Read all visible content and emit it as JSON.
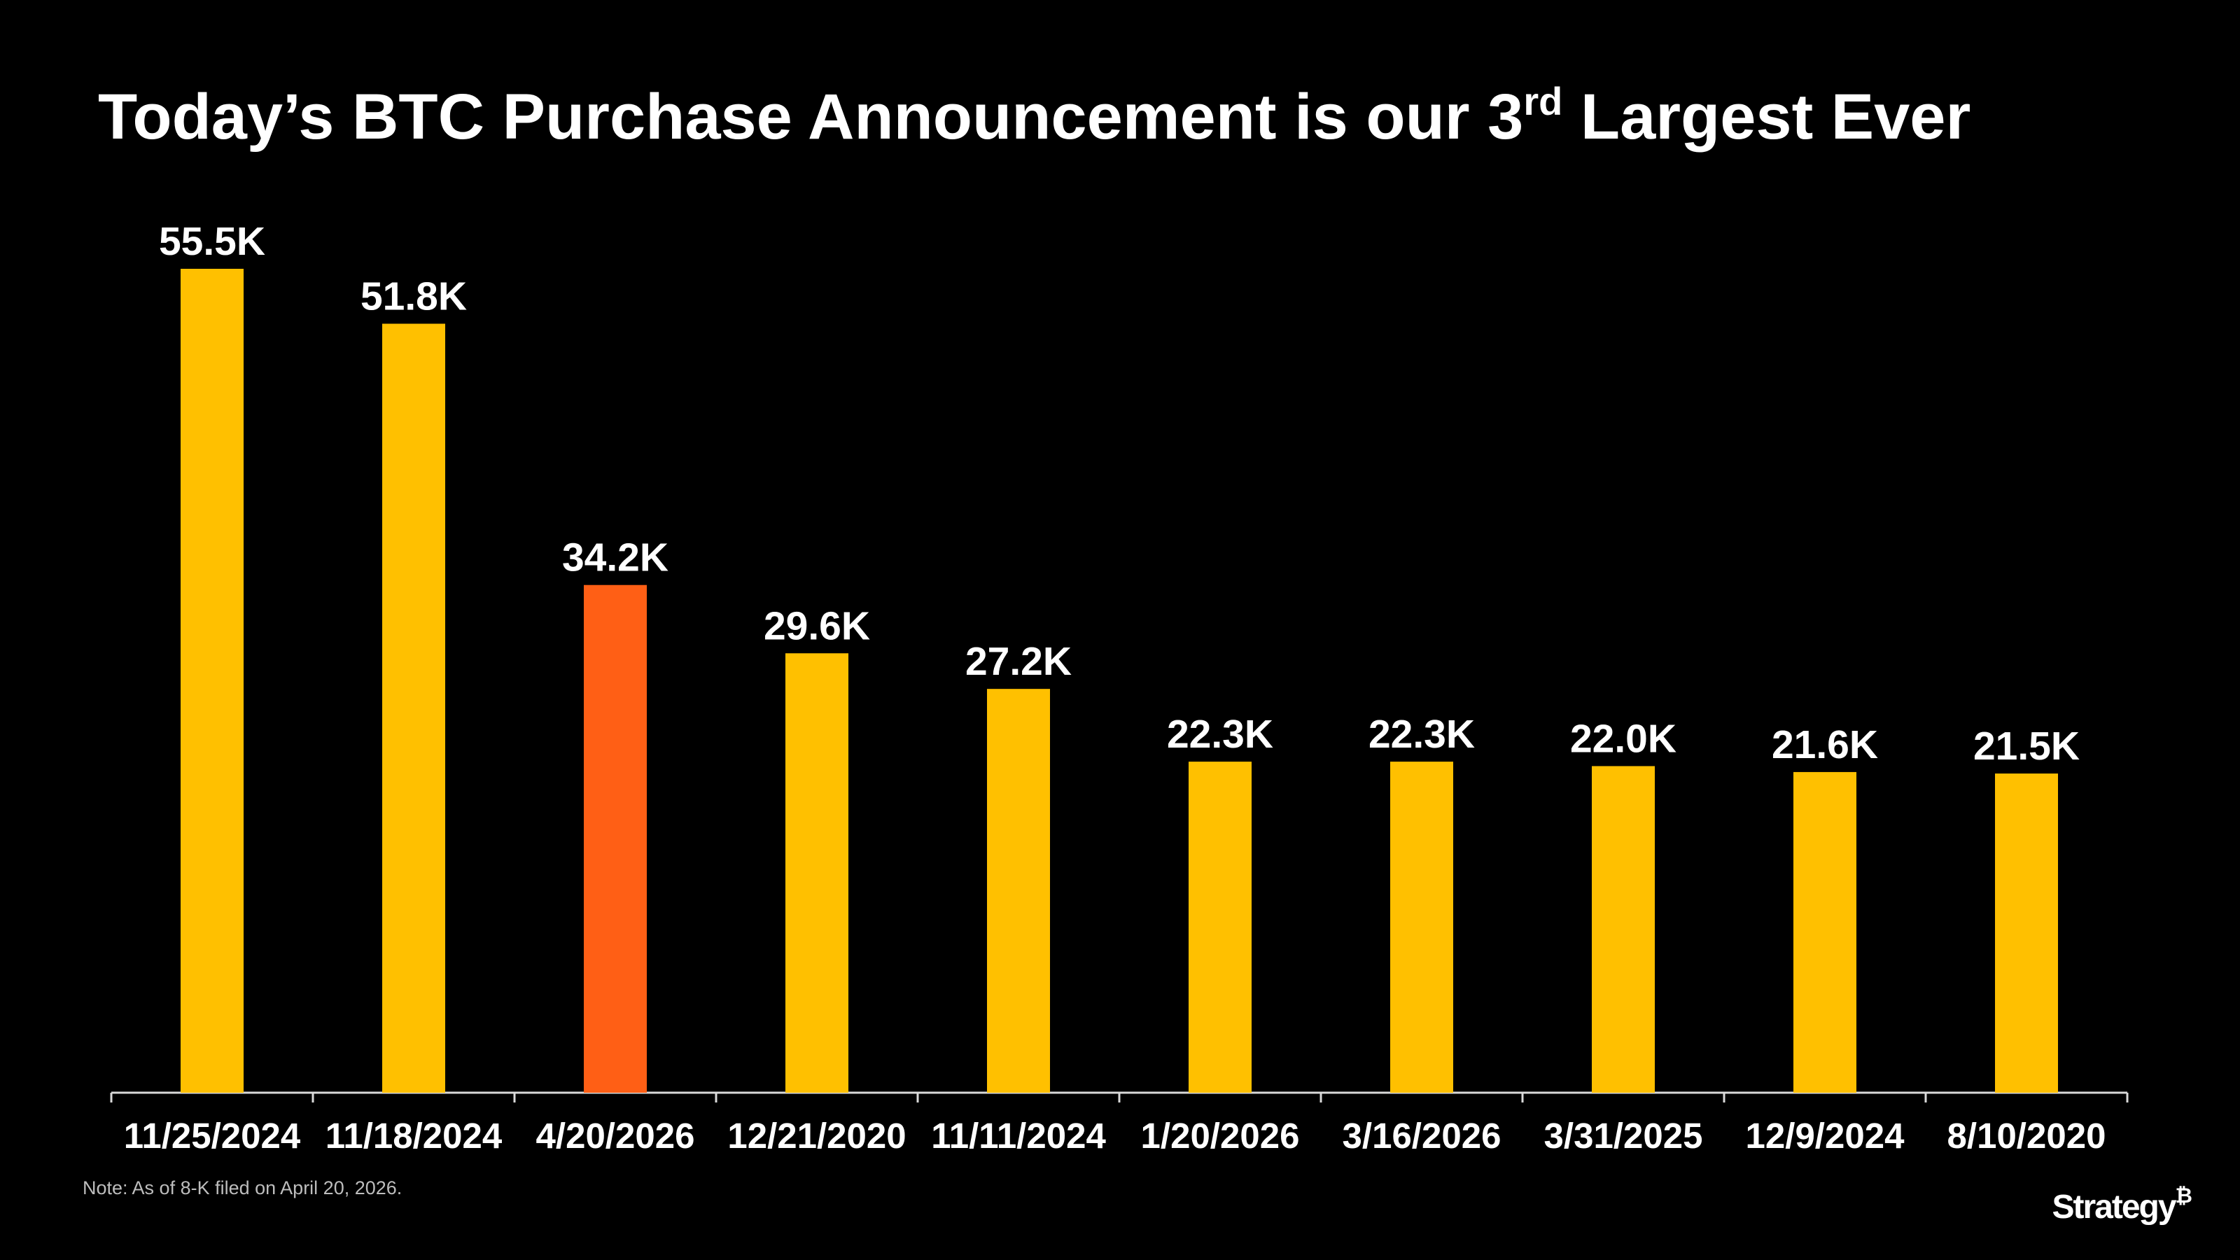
{
  "chart_data": {
    "type": "bar",
    "title": {
      "text": "Today’s BTC Purchase Announcement is our 3",
      "superscript": "rd",
      "text_after": " Largest Ever"
    },
    "categories": [
      "11/25/2024",
      "11/18/2024",
      "4/20/2026",
      "12/21/2020",
      "11/11/2024",
      "1/20/2026",
      "3/16/2026",
      "3/31/2025",
      "12/9/2024",
      "8/10/2020"
    ],
    "values": [
      55.5,
      51.8,
      34.2,
      29.6,
      27.2,
      22.3,
      22.3,
      22.0,
      21.6,
      21.5
    ],
    "value_labels": [
      "55.5K",
      "51.8K",
      "34.2K",
      "29.6K",
      "27.2K",
      "22.3K",
      "22.3K",
      "22.0K",
      "21.6K",
      "21.5K"
    ],
    "colors": [
      "#FFC000",
      "#FFC000",
      "#FF5F15",
      "#FFC000",
      "#FFC000",
      "#FFC000",
      "#FFC000",
      "#FFC000",
      "#FFC000",
      "#FFC000"
    ],
    "note": "Note: As of 8-K filed on April 20, 2026.",
    "logo": {
      "text": "Strategy",
      "mark": "₿"
    }
  }
}
